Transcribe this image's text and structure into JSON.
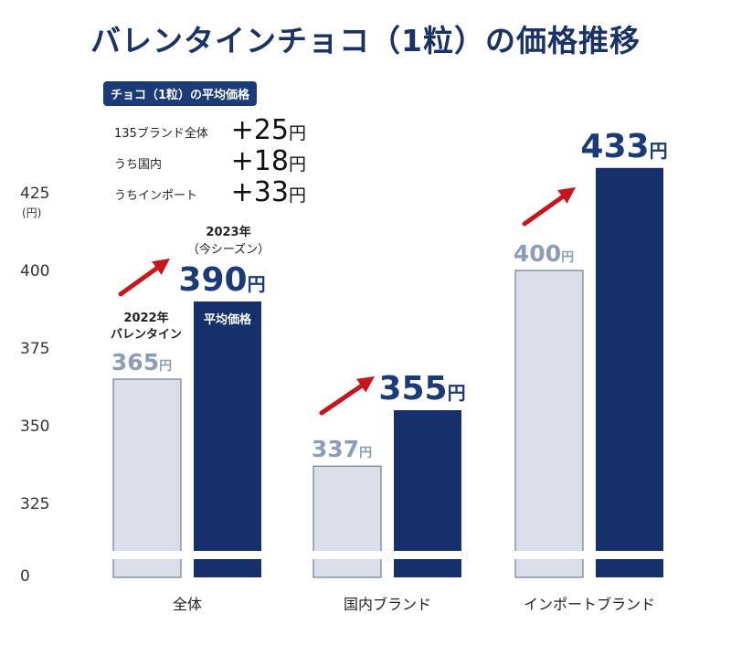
{
  "title": "バレンタインチョコ（1粒）の価格推移",
  "summary": {
    "header": "チョコ（1粒）の平均価格",
    "rows": [
      {
        "label": "135ブランド全体",
        "value": "+25",
        "unit": "円"
      },
      {
        "label": "うち国内",
        "value": "+18",
        "unit": "円"
      },
      {
        "label": "うちインポート",
        "value": "+33",
        "unit": "円"
      }
    ]
  },
  "chart_data": {
    "type": "bar",
    "title": "バレンタインチョコ（1粒）の価格推移",
    "ylabel": "(円)",
    "yticks": [
      0,
      325,
      350,
      375,
      400,
      425
    ],
    "ylim": [
      0,
      433
    ],
    "axis_break": true,
    "grid": false,
    "categories": [
      "全体",
      "国内ブランド",
      "インポートブランド"
    ],
    "series": [
      {
        "name": "2022年 バレンタイン",
        "values": [
          365,
          337,
          400
        ],
        "labels": [
          "365円",
          "337円",
          "400円"
        ],
        "color": "#d9dee8"
      },
      {
        "name": "2023年（今シーズン）",
        "values": [
          390,
          355,
          433
        ],
        "labels": [
          "390円",
          "355円",
          "433円"
        ],
        "color": "#15306b"
      }
    ],
    "annotations": {
      "series1_top": "2022年",
      "series1_bottom": "バレンタイン",
      "series2_top": "2023年",
      "series2_bottom": "（今シーズン）",
      "bar_inner": "平均価格"
    },
    "arrow_color": "#c8141c",
    "light_label_color": "#8d9db5",
    "dark_label_color": "#1b3a78"
  }
}
